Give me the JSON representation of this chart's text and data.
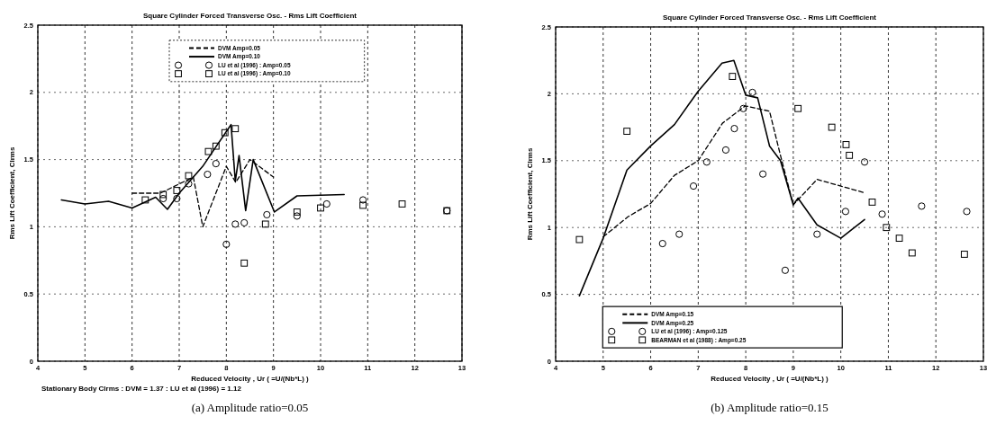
{
  "chart_data": [
    {
      "type": "line",
      "title": "Square Cylinder Forced Transverse Osc. - Rms Lift Coefficient",
      "xlabel": "Reduced Velocity , Ur ( =U/(Nb*L) )",
      "ylabel": "Rms Lift Coefficient, Clrms",
      "annotations": [
        "Stationary Body Clrms : DVM = 1.37 : LU et al (1996) = 1.12",
        "(a) Amplitude ratio=0.05"
      ],
      "xlim": [
        4,
        13
      ],
      "ylim": [
        0,
        2.5
      ],
      "xticks": [
        4,
        5,
        6,
        7,
        8,
        9,
        10,
        11,
        12,
        13
      ],
      "yticks": [
        0,
        0.5,
        1,
        1.5,
        2,
        2.5
      ],
      "grid": true,
      "legend": "top",
      "series": [
        {
          "name": "DVM Amp=0.05",
          "color": "#000000",
          "line_style": "dashed",
          "x": [
            6.0,
            6.6,
            7.3,
            7.5,
            8.0,
            8.2,
            8.5,
            9.0
          ],
          "values": [
            1.25,
            1.25,
            1.37,
            1.0,
            1.45,
            1.33,
            1.5,
            1.37
          ]
        },
        {
          "name": "DVM Amp=0.10",
          "color": "#000000",
          "line_style": "solid",
          "x": [
            4.5,
            5.0,
            5.5,
            6.0,
            6.5,
            6.75,
            7.0,
            7.25,
            7.5,
            7.75,
            8.1,
            8.19,
            8.27,
            8.41,
            8.57,
            9.02,
            9.5,
            10.5
          ],
          "values": [
            1.2,
            1.17,
            1.19,
            1.14,
            1.22,
            1.13,
            1.25,
            1.35,
            1.45,
            1.58,
            1.76,
            1.34,
            1.53,
            1.12,
            1.5,
            1.11,
            1.23,
            1.24
          ]
        },
        {
          "name": "LU et al (1996) : Amp=0.05",
          "color": "#000000",
          "type": "scatter",
          "marker": "circle",
          "x": [
            6.66,
            6.95,
            7.2,
            7.6,
            7.78,
            8.0,
            8.19,
            8.38,
            8.86,
            9.5,
            10.13,
            10.9,
            12.68
          ],
          "values": [
            1.21,
            1.21,
            1.32,
            1.39,
            1.47,
            0.87,
            1.02,
            1.03,
            1.09,
            1.08,
            1.17,
            1.2,
            1.12
          ]
        },
        {
          "name": "LU et al (1996) : Amp=0.10",
          "color": "#000000",
          "type": "scatter",
          "marker": "square",
          "x": [
            6.28,
            6.66,
            6.95,
            7.2,
            7.62,
            7.78,
            7.97,
            8.19,
            8.38,
            8.83,
            9.5,
            10.0,
            10.9,
            11.73,
            12.68
          ],
          "values": [
            1.2,
            1.24,
            1.27,
            1.38,
            1.56,
            1.6,
            1.7,
            1.73,
            0.73,
            1.02,
            1.11,
            1.14,
            1.16,
            1.17,
            1.12
          ]
        }
      ]
    },
    {
      "type": "line",
      "title": "Square Cylinder Forced Transverse Osc. - Rms Lift Coefficient",
      "xlabel": "Reduced Velocity , Ur ( =U/(Nb*L) )",
      "ylabel": "Rms Lift Coefficient, Clrms",
      "annotations": [
        "(b) Amplitude ratio=0.15"
      ],
      "xlim": [
        4,
        13
      ],
      "ylim": [
        0,
        2.5
      ],
      "xticks": [
        4,
        5,
        6,
        7,
        8,
        9,
        10,
        11,
        12,
        13
      ],
      "yticks": [
        0,
        0.5,
        1,
        1.5,
        2,
        2.5
      ],
      "grid": true,
      "legend": "bottom",
      "series": [
        {
          "name": "DVM Amp=0.15",
          "color": "#000000",
          "line_style": "dashed",
          "x": [
            5.0,
            5.52,
            6.0,
            6.5,
            7.0,
            7.51,
            7.99,
            8.5,
            8.73,
            9.0,
            9.5,
            10.5
          ],
          "values": [
            0.93,
            1.08,
            1.18,
            1.39,
            1.5,
            1.78,
            1.91,
            1.87,
            1.54,
            1.17,
            1.36,
            1.26
          ]
        },
        {
          "name": "DVM Amp=0.25",
          "color": "#000000",
          "line_style": "solid",
          "x": [
            4.5,
            5.0,
            5.5,
            6.0,
            6.5,
            7.0,
            7.5,
            7.75,
            8.0,
            8.25,
            8.5,
            8.73,
            9.0,
            9.1,
            9.5,
            10.0,
            10.5
          ],
          "values": [
            0.49,
            0.92,
            1.43,
            1.61,
            1.77,
            2.02,
            2.23,
            2.25,
            1.99,
            1.97,
            1.61,
            1.5,
            1.17,
            1.22,
            1.02,
            0.92,
            1.06
          ]
        },
        {
          "name": "LU et al (1996) : Amp=0.125",
          "color": "#000000",
          "type": "scatter",
          "marker": "circle",
          "x": [
            6.25,
            6.6,
            6.9,
            7.18,
            7.58,
            7.76,
            7.95,
            8.14,
            8.36,
            8.83,
            9.5,
            10.1,
            10.5,
            10.87,
            11.7,
            12.65
          ],
          "values": [
            0.88,
            0.95,
            1.31,
            1.49,
            1.58,
            1.74,
            1.89,
            2.01,
            1.4,
            0.68,
            0.95,
            1.12,
            1.49,
            1.1,
            1.16,
            1.12
          ]
        },
        {
          "name": "BEARMAN et al (1988) : Amp=0.25",
          "color": "#000000",
          "type": "scatter",
          "marker": "square",
          "x": [
            4.5,
            5.5,
            7.72,
            9.1,
            9.81,
            10.11,
            10.18,
            10.66,
            10.96,
            11.23,
            11.5,
            12.6
          ],
          "values": [
            0.91,
            1.72,
            2.13,
            1.89,
            1.75,
            1.62,
            1.54,
            1.19,
            1.0,
            0.92,
            0.81,
            0.8
          ]
        }
      ]
    }
  ]
}
